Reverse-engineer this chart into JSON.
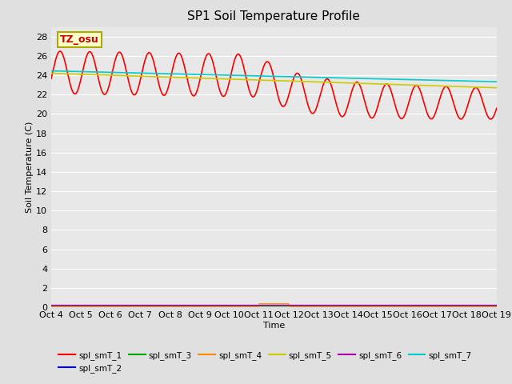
{
  "title": "SP1 Soil Temperature Profile",
  "xlabel": "Time",
  "ylabel": "Soil Temperature (C)",
  "annotation_text": "TZ_osu",
  "annotation_color": "#cc0000",
  "annotation_bg": "#ffffcc",
  "annotation_border": "#aaaa00",
  "ylim": [
    0,
    29
  ],
  "yticks": [
    0,
    2,
    4,
    6,
    8,
    10,
    12,
    14,
    16,
    18,
    20,
    22,
    24,
    26,
    28
  ],
  "n_points": 1500,
  "series_names": [
    "spl_smT_1",
    "spl_smT_2",
    "spl_smT_3",
    "spl_smT_4",
    "spl_smT_5",
    "spl_smT_6",
    "spl_smT_7"
  ],
  "series_colors": [
    "#ff0000",
    "#0000cc",
    "#00aa00",
    "#ff8800",
    "#cccc00",
    "#aa00aa",
    "#00cccc"
  ],
  "series_lw": [
    1.2,
    1.0,
    1.0,
    1.0,
    1.2,
    1.0,
    1.2
  ],
  "bg_color": "#e8e8e8",
  "fig_bg_color": "#e0e0e0",
  "grid_color": "#ffffff",
  "xtick_labels": [
    "Oct 4",
    "Oct 5",
    "Oct 6",
    "Oct 7",
    "Oct 8",
    "Oct 9",
    "Oct 10",
    "Oct 11",
    "Oct 12",
    "Oct 13",
    "Oct 14",
    "Oct 15",
    "Oct 16",
    "Oct 17",
    "Oct 18",
    "Oct 19"
  ]
}
